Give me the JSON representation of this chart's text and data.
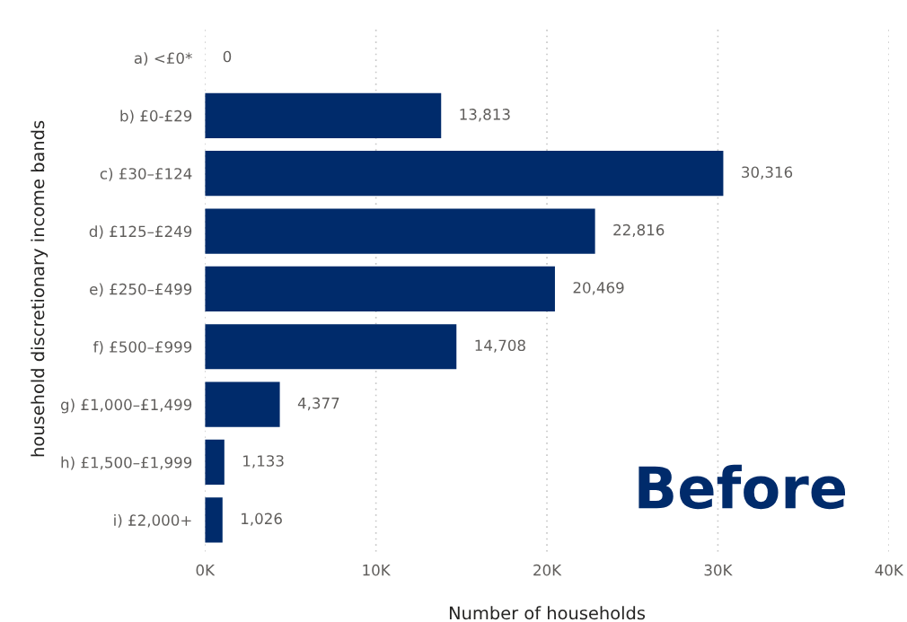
{
  "chart_data": {
    "type": "bar",
    "orientation": "horizontal",
    "ylabel": "household discretionary income bands",
    "xlabel": "Number of households",
    "categories": [
      "a) <£0*",
      "b) £0-£29",
      "c) £30–£124",
      "d) £125–£249",
      "e) £250–£499",
      "f) £500–£999",
      "g) £1,000–£1,499",
      "h) £1,500–£1,999",
      "i) £2,000+"
    ],
    "values": [
      0,
      13813,
      30316,
      22816,
      20469,
      14708,
      4377,
      1133,
      1026
    ],
    "value_labels": [
      "0",
      "13,813",
      "30,316",
      "22,816",
      "20,469",
      "14,708",
      "4,377",
      "1,133",
      "1,026"
    ],
    "color": "#002b6b",
    "xlim": [
      0,
      40000
    ],
    "xticks": [
      {
        "value": 0,
        "label": "0K"
      },
      {
        "value": 10000,
        "label": "10K"
      },
      {
        "value": 20000,
        "label": "20K"
      },
      {
        "value": 30000,
        "label": "30K"
      },
      {
        "value": 40000,
        "label": "40K"
      }
    ],
    "grid": "x",
    "legend": false,
    "annotations": [
      "Before"
    ]
  }
}
